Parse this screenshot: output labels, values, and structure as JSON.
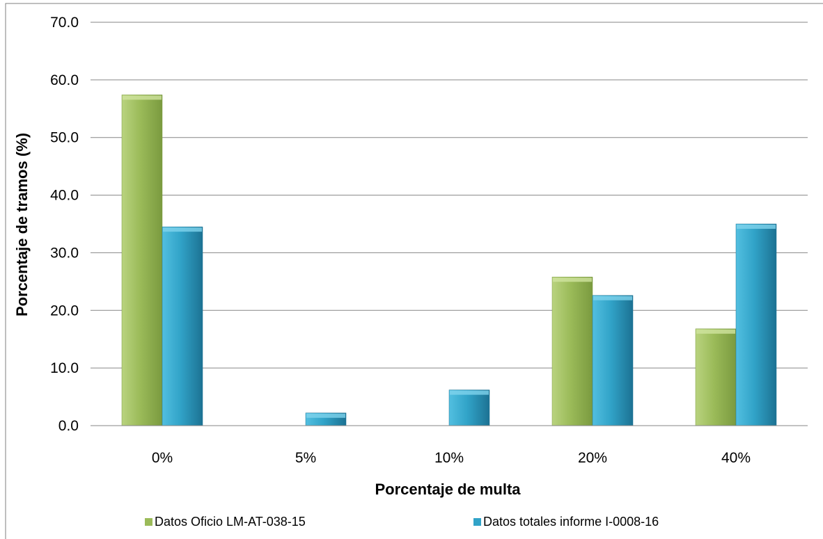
{
  "chart_data": {
    "type": "bar",
    "title": "",
    "xlabel": "Porcentaje de multa",
    "ylabel": "Porcentaje de tramos (%)",
    "categories": [
      "0%",
      "5%",
      "10%",
      "20%",
      "40%"
    ],
    "ylim": [
      0,
      70
    ],
    "yticks": [
      "0.0",
      "10.0",
      "20.0",
      "30.0",
      "40.0",
      "50.0",
      "60.0",
      "70.0"
    ],
    "grid": true,
    "legend_position": "bottom",
    "series": [
      {
        "name": "Datos Oficio LM-AT-038-15",
        "values": [
          57.4,
          0,
          0,
          25.8,
          16.8
        ],
        "color": "#9bbb59"
      },
      {
        "name": "Datos totales informe I-0008-16",
        "values": [
          34.5,
          2.2,
          6.2,
          22.6,
          35.0
        ],
        "color": "#31a3c8"
      }
    ]
  }
}
